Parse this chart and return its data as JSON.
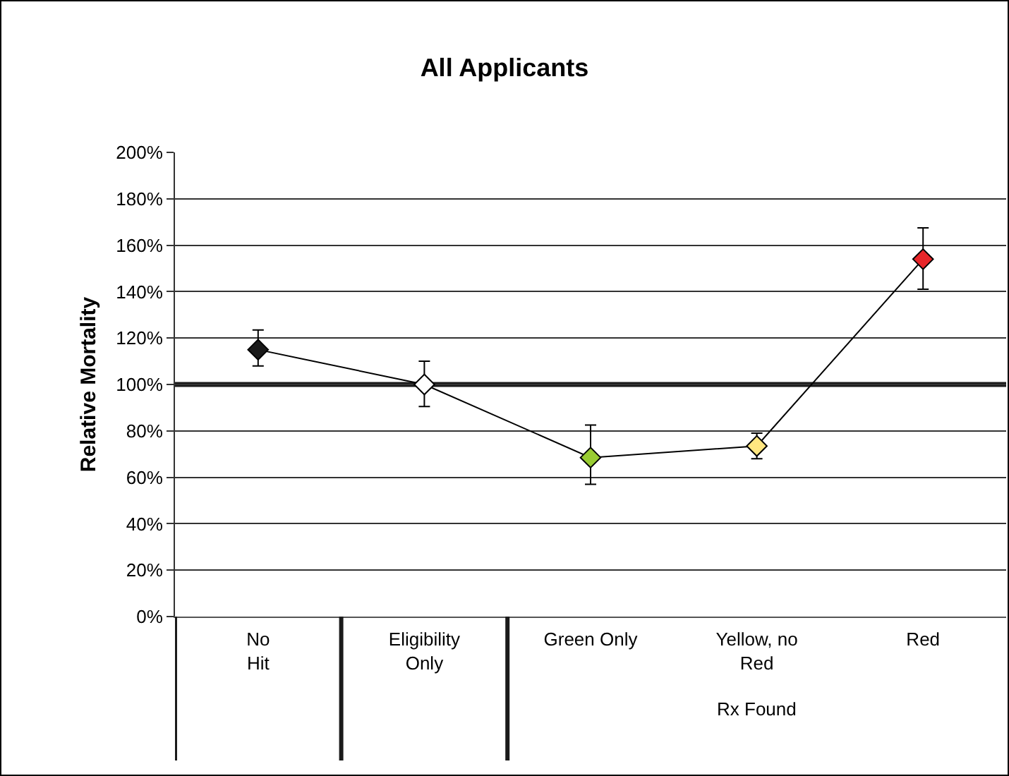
{
  "chart_data": {
    "type": "line",
    "title": "All Applicants",
    "ylabel": "Relative Mortality",
    "categories": [
      "No\nHit",
      "Eligibility\nOnly",
      "Green Only",
      "Yellow, no\nRed",
      "Red"
    ],
    "values": [
      115,
      100,
      68.5,
      73.5,
      154
    ],
    "errors": [
      [
        108,
        123.5
      ],
      [
        90.5,
        110
      ],
      [
        57,
        82.5
      ],
      [
        68,
        79
      ],
      [
        141,
        167.5
      ]
    ],
    "color": "#000000",
    "colors": [
      "#1a1a1a",
      "#ffffff",
      "#99cc33",
      "#ffe680",
      "#e8262a"
    ],
    "marker": "diamond",
    "line_style": "solid",
    "grid": "y",
    "ylim": [
      0,
      200
    ],
    "yticks": [
      {
        "value": 0,
        "label": "0%"
      },
      {
        "value": 20,
        "label": "20%"
      },
      {
        "value": 40,
        "label": "40%"
      },
      {
        "value": 60,
        "label": "60%"
      },
      {
        "value": 80,
        "label": "80%"
      },
      {
        "value": 100,
        "label": "100%"
      },
      {
        "value": 120,
        "label": "120%"
      },
      {
        "value": 140,
        "label": "140%"
      },
      {
        "value": 160,
        "label": "160%"
      },
      {
        "value": 180,
        "label": "180%"
      },
      {
        "value": 200,
        "label": "200%"
      }
    ],
    "ref_lines": [
      {
        "axis": "y",
        "value": 100,
        "color": "#1a1a1a",
        "line_style": "solid"
      }
    ],
    "annotations": [
      "Rx Found"
    ]
  }
}
